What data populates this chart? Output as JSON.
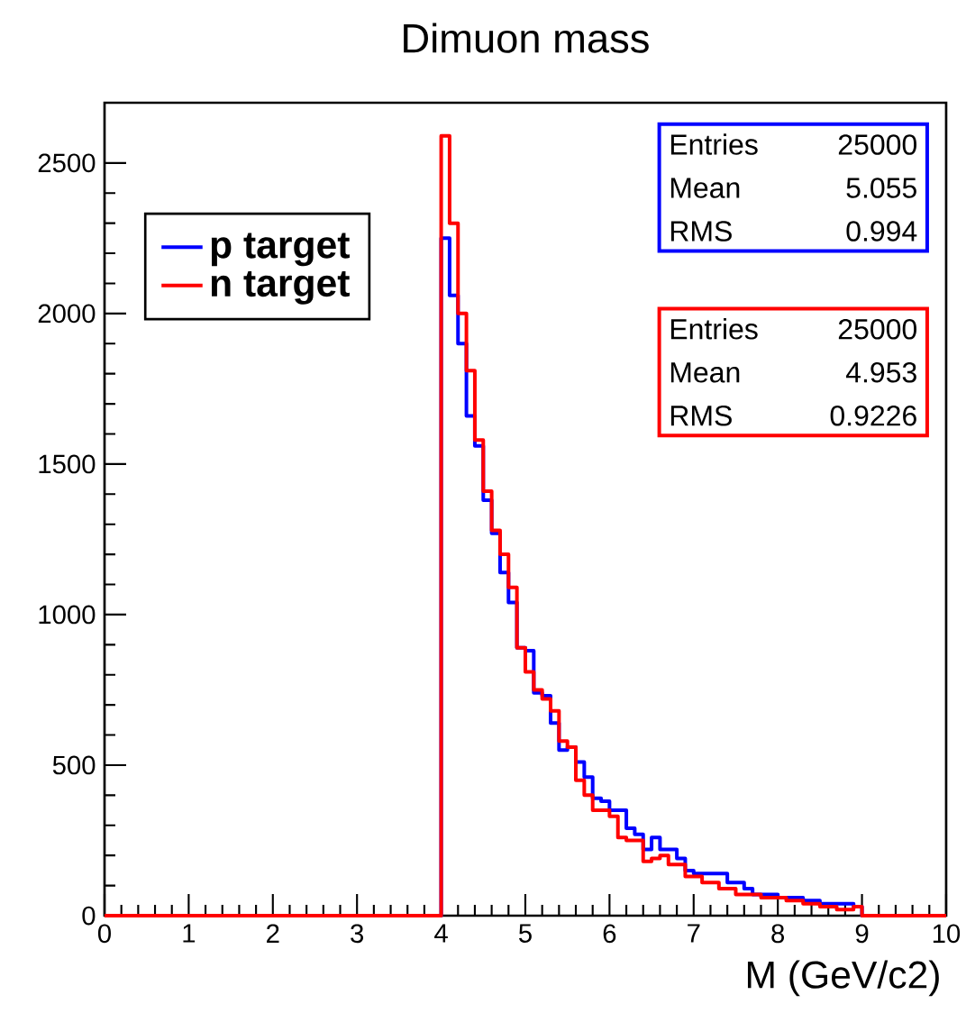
{
  "chart_data": {
    "type": "histogram",
    "title": "Dimuon mass",
    "xlabel": "M (GeV/c2)",
    "bins": [
      0,
      0.1,
      0.2,
      0.3,
      0.4,
      0.5,
      0.6,
      0.7,
      0.8,
      0.9,
      1,
      1.1,
      1.2,
      1.3,
      1.4,
      1.5,
      1.6,
      1.7,
      1.8,
      1.9,
      2,
      2.1,
      2.2,
      2.3,
      2.4,
      2.5,
      2.6,
      2.7,
      2.8,
      2.9,
      3,
      3.1,
      3.2,
      3.3,
      3.4,
      3.5,
      3.6,
      3.7,
      3.8,
      3.9,
      4,
      4.1,
      4.2,
      4.3,
      4.4,
      4.5,
      4.6,
      4.7,
      4.8,
      4.9,
      5,
      5.1,
      5.2,
      5.3,
      5.4,
      5.5,
      5.6,
      5.7,
      5.8,
      5.9,
      6,
      6.1,
      6.2,
      6.3,
      6.4,
      6.5,
      6.6,
      6.7,
      6.8,
      6.9,
      7,
      7.1,
      7.2,
      7.3,
      7.4,
      7.5,
      7.6,
      7.7,
      7.8,
      7.9,
      8,
      8.1,
      8.2,
      8.3,
      8.4,
      8.5,
      8.6,
      8.7,
      8.8,
      8.9,
      9,
      9.1,
      9.2,
      9.3,
      9.4,
      9.5,
      9.6,
      9.7,
      9.8,
      9.9,
      10
    ],
    "series": [
      {
        "name": "p target",
        "color": "#0000ff",
        "values": [
          0,
          0,
          0,
          0,
          0,
          0,
          0,
          0,
          0,
          0,
          0,
          0,
          0,
          0,
          0,
          0,
          0,
          0,
          0,
          0,
          0,
          0,
          0,
          0,
          0,
          0,
          0,
          0,
          0,
          0,
          0,
          0,
          0,
          0,
          0,
          0,
          0,
          0,
          0,
          0,
          2250,
          2060,
          1900,
          1660,
          1560,
          1380,
          1270,
          1140,
          1040,
          890,
          880,
          740,
          730,
          640,
          550,
          560,
          510,
          460,
          390,
          380,
          350,
          350,
          290,
          270,
          220,
          260,
          220,
          220,
          190,
          150,
          140,
          140,
          140,
          140,
          110,
          110,
          90,
          70,
          70,
          70,
          60,
          60,
          60,
          50,
          50,
          40,
          40,
          40,
          40,
          30,
          0,
          0,
          0,
          0,
          0,
          0,
          0,
          0,
          0,
          0
        ]
      },
      {
        "name": "n target",
        "color": "#ff0000",
        "values": [
          0,
          0,
          0,
          0,
          0,
          0,
          0,
          0,
          0,
          0,
          0,
          0,
          0,
          0,
          0,
          0,
          0,
          0,
          0,
          0,
          0,
          0,
          0,
          0,
          0,
          0,
          0,
          0,
          0,
          0,
          0,
          0,
          0,
          0,
          0,
          0,
          0,
          0,
          0,
          0,
          2590,
          2300,
          2000,
          1810,
          1580,
          1410,
          1280,
          1200,
          1090,
          890,
          810,
          750,
          720,
          680,
          580,
          560,
          450,
          400,
          350,
          350,
          330,
          260,
          250,
          250,
          180,
          190,
          200,
          170,
          170,
          130,
          130,
          110,
          110,
          90,
          90,
          70,
          70,
          70,
          60,
          60,
          60,
          50,
          50,
          40,
          40,
          30,
          30,
          20,
          20,
          30,
          0,
          0,
          0,
          0,
          0,
          0,
          0,
          0,
          0,
          0
        ]
      }
    ],
    "xlim": [
      0,
      10
    ],
    "ylim": [
      0,
      2700
    ],
    "xticks": [
      0,
      1,
      2,
      3,
      4,
      5,
      6,
      7,
      8,
      9,
      10
    ],
    "yticks": [
      0,
      500,
      1000,
      1500,
      2000,
      2500
    ],
    "legend": "top left",
    "grid": false,
    "annotations": [
      "Entries",
      "25000",
      "Mean",
      "5.055",
      "RMS",
      "0.994",
      "Entries",
      "25000",
      "Mean",
      "4.953",
      "RMS",
      "0.9226"
    ]
  }
}
